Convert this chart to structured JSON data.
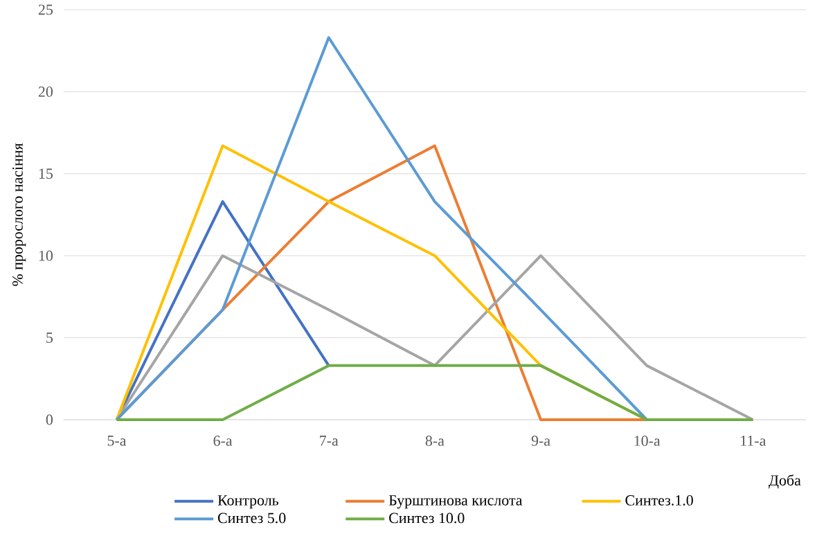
{
  "chart_data": {
    "type": "line",
    "xlabel": "Доба",
    "ylabel": "% пророслого насіння",
    "categories": [
      "5-а",
      "6-а",
      "7-а",
      "8-а",
      "9-а",
      "10-а",
      "11-а"
    ],
    "series": [
      {
        "name": "Контроль",
        "color": "#4472c4",
        "values": [
          0,
          13.3,
          3.3,
          null,
          null,
          null,
          null
        ]
      },
      {
        "name": "Бурштинова кислота",
        "color": "#ed7d31",
        "values": [
          0,
          6.7,
          13.3,
          16.7,
          0,
          0,
          0
        ]
      },
      {
        "color": "#a5a5a5",
        "values": [
          0,
          10,
          6.7,
          3.3,
          10,
          3.3,
          0
        ]
      },
      {
        "name": "Синтез.1.0",
        "color": "#ffc000",
        "values": [
          0,
          16.7,
          13.3,
          10,
          3.3,
          0,
          0
        ]
      },
      {
        "name": "Синтез 5.0",
        "color": "#5b9bd5",
        "values": [
          0,
          6.7,
          23.3,
          13.3,
          6.7,
          0,
          0
        ]
      },
      {
        "name": "Синтез 10.0",
        "color": "#70ad47",
        "values": [
          0,
          0,
          3.3,
          3.3,
          3.3,
          0,
          0
        ]
      }
    ],
    "ylim": [
      0,
      25
    ],
    "yticks": [
      0,
      5,
      10,
      15,
      20,
      25
    ],
    "grid": "y",
    "legend": "bottom",
    "marker": "none",
    "line_style": "solid"
  }
}
